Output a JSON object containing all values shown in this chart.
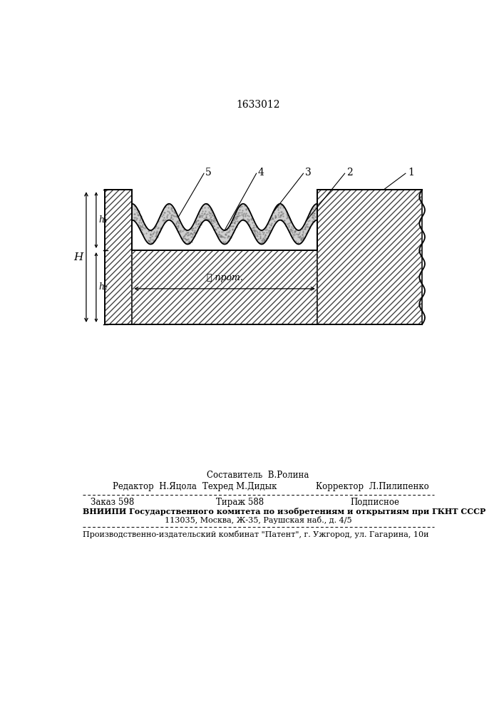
{
  "patent_number": "1633012",
  "bg_color": "#ffffff",
  "footer_line0_center": "Составитель  В.Ролина",
  "footer_line1_left": "Редактор  Н.Яцола",
  "footer_line1_center": "Техред М.Дидык",
  "footer_line1_right": "Корректор  Л.Пилипенко",
  "footer_line2_left": "Заказ 598",
  "footer_line2_center": "Тираж 588",
  "footer_line2_right": "Подписное",
  "footer_line3": "ВНИИПИ Государственного комитета по изобретениям и открытиям при ГКНТ СССР",
  "footer_line4": "113035, Москва, Ж-35, Раушская наб., д. 4/5",
  "footer_line5": "Производственно-издательский комбинат \"Патент\", г. Ужгород, ул. Гагарина, 10и"
}
